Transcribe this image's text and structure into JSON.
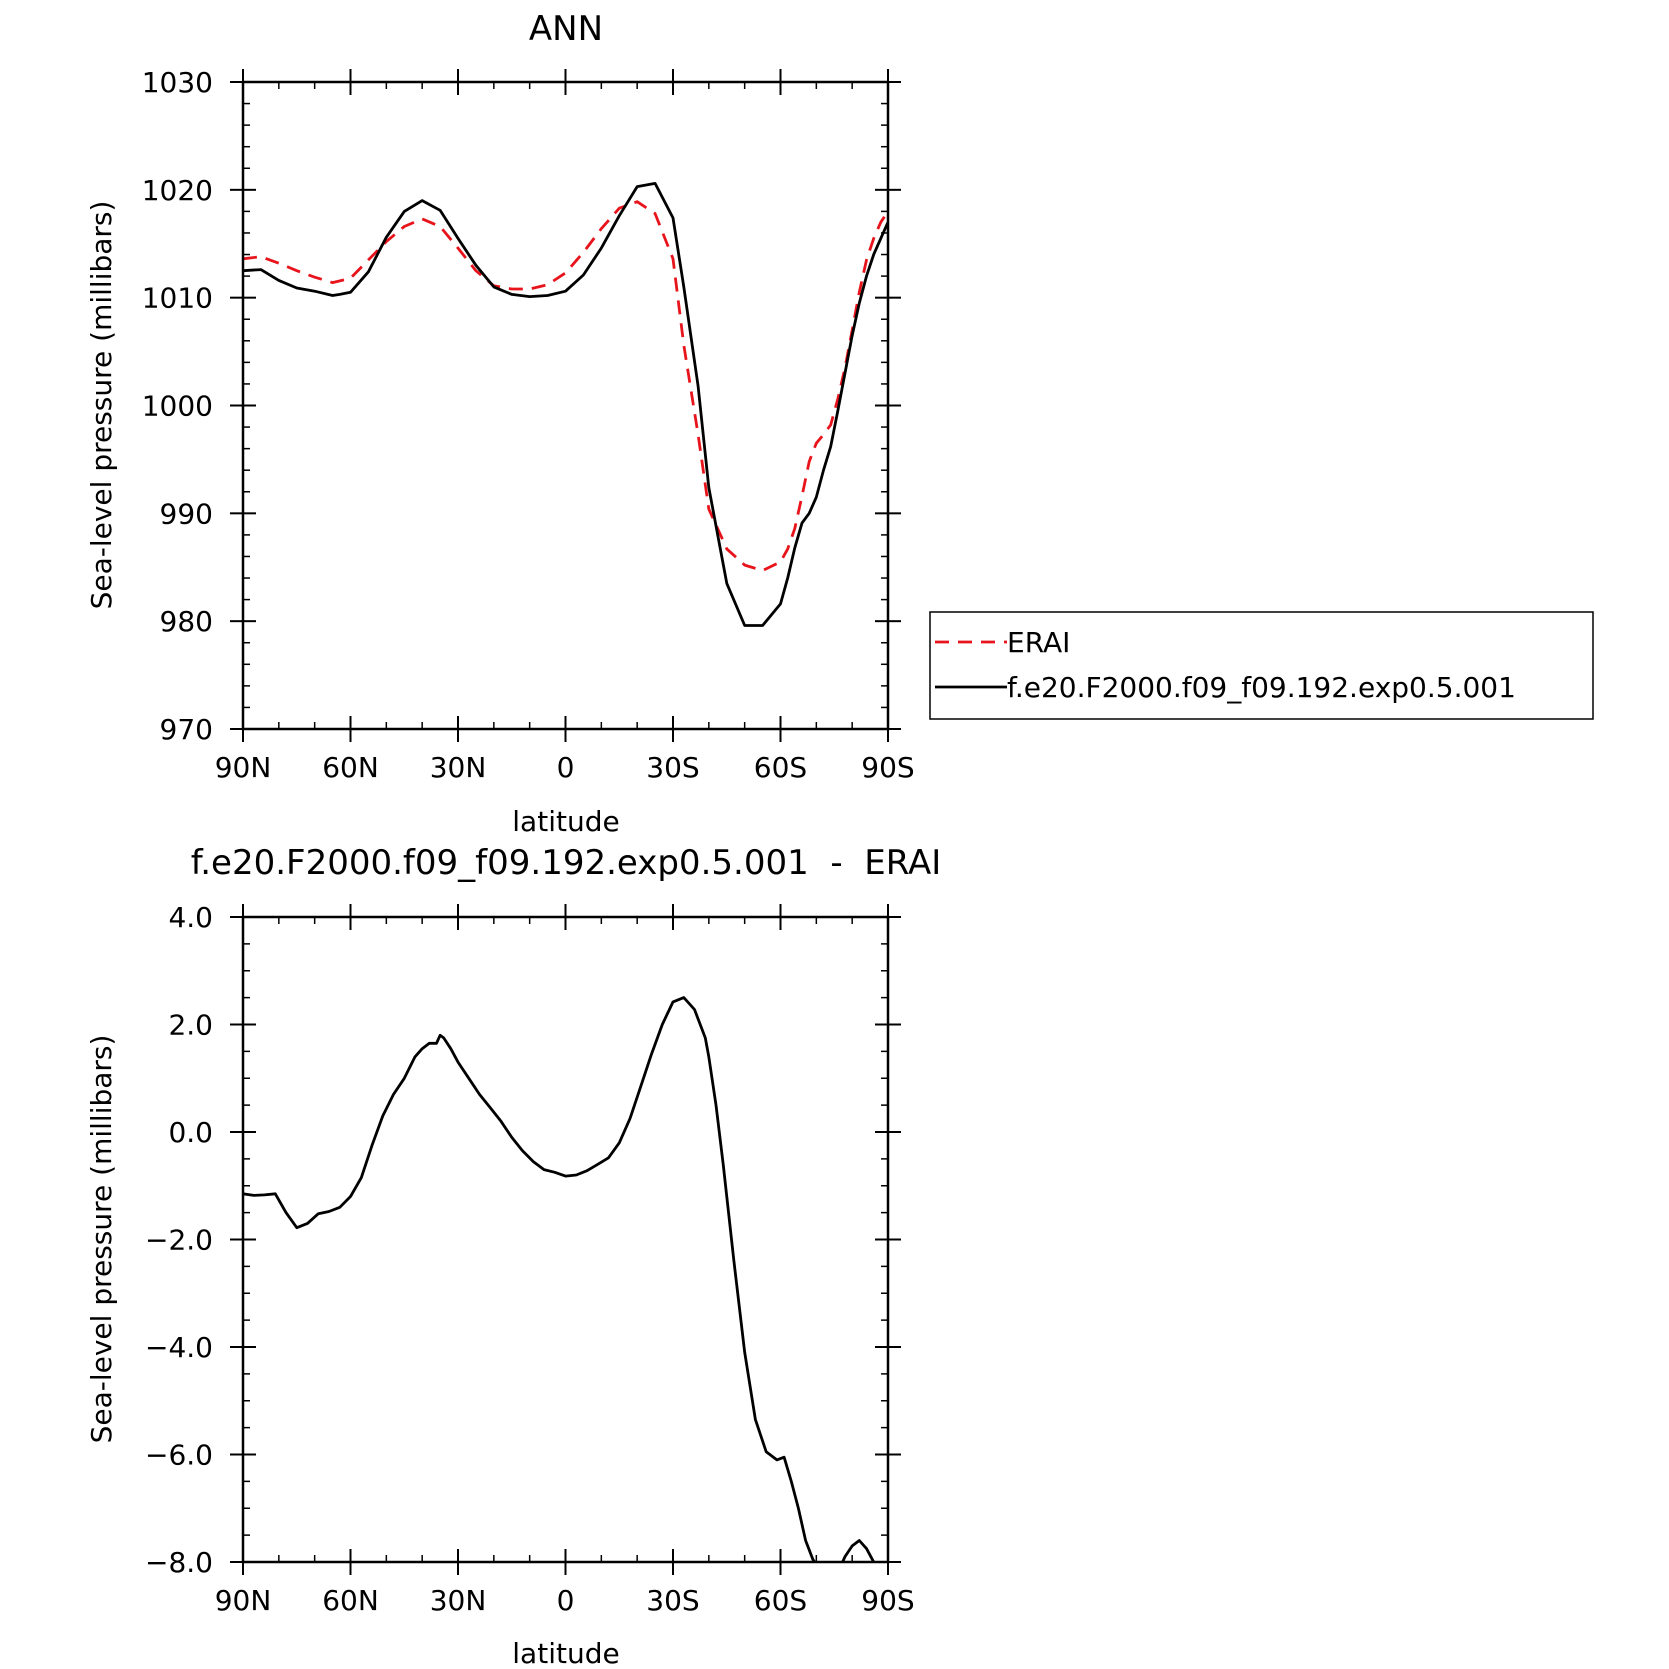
{
  "chart_data": [
    {
      "type": "line",
      "title": "ANN",
      "xlabel": "latitude",
      "ylabel": "Sea-level pressure (millibars)",
      "xlim": [
        -90,
        90
      ],
      "ylim": [
        970,
        1030
      ],
      "x_ticks": [
        -90,
        -60,
        -30,
        0,
        30,
        60,
        90
      ],
      "x_tick_labels": [
        "90N",
        "60N",
        "30N",
        "0",
        "30S",
        "60S",
        "90S"
      ],
      "y_ticks": [
        970,
        980,
        990,
        1000,
        1010,
        1020,
        1030
      ],
      "y_tick_labels": [
        "970",
        "980",
        "990",
        "1000",
        "1010",
        "1020",
        "1030"
      ],
      "legend_position": "right",
      "series": [
        {
          "name": "ERAI",
          "color": "#e8141c",
          "dash": "dashed",
          "x": [
            -90,
            -85,
            -80,
            -75,
            -70,
            -65,
            -60,
            -55,
            -50,
            -45,
            -40,
            -35,
            -30,
            -25,
            -20,
            -15,
            -10,
            -5,
            0,
            5,
            10,
            15,
            20,
            25,
            30,
            33,
            37,
            40,
            45,
            50,
            55,
            60,
            62,
            64,
            66,
            68,
            70,
            72,
            74,
            76,
            78,
            80,
            82,
            84,
            86,
            88,
            90
          ],
          "y": [
            1013.6,
            1013.8,
            1013.2,
            1012.5,
            1011.9,
            1011.4,
            1011.8,
            1013.5,
            1015.2,
            1016.6,
            1017.3,
            1016.6,
            1014.6,
            1012.5,
            1011.1,
            1010.8,
            1010.8,
            1011.2,
            1012.3,
            1014.2,
            1016.4,
            1018.3,
            1018.9,
            1017.8,
            1013.6,
            1005.6,
            997.3,
            990.4,
            986.7,
            985.2,
            984.7,
            985.5,
            986.7,
            988.6,
            991.6,
            994.8,
            996.5,
            997.3,
            998.2,
            1000.6,
            1003.5,
            1007.0,
            1010.5,
            1013.5,
            1015.5,
            1017.0,
            1018.0
          ]
        },
        {
          "name": "f.e20.F2000.f09_f09.192.exp0.5.001",
          "color": "#000000",
          "dash": "solid",
          "x": [
            -90,
            -85,
            -80,
            -75,
            -70,
            -65,
            -63,
            -60,
            -55,
            -50,
            -45,
            -40,
            -35,
            -30,
            -25,
            -20,
            -15,
            -10,
            -5,
            0,
            5,
            10,
            15,
            20,
            25,
            30,
            33,
            37,
            40,
            45,
            50,
            55,
            60,
            62,
            64,
            66,
            68,
            70,
            72,
            74,
            76,
            78,
            80,
            82,
            84,
            86,
            88,
            90
          ],
          "y": [
            1012.5,
            1012.6,
            1011.6,
            1010.9,
            1010.6,
            1010.2,
            1010.3,
            1010.5,
            1012.4,
            1015.6,
            1018.0,
            1019.0,
            1018.1,
            1015.5,
            1013.0,
            1011.0,
            1010.3,
            1010.1,
            1010.2,
            1010.6,
            1012.1,
            1014.6,
            1017.6,
            1020.3,
            1020.6,
            1017.4,
            1011.0,
            1001.8,
            992.4,
            983.5,
            979.6,
            979.6,
            981.6,
            984.0,
            986.8,
            989.1,
            990.0,
            991.5,
            994.0,
            996.2,
            999.5,
            1003.0,
            1006.5,
            1009.5,
            1012.0,
            1014.0,
            1015.5,
            1017.0
          ]
        }
      ]
    },
    {
      "type": "line",
      "title": "f.e20.F2000.f09_f09.192.exp0.5.001  -  ERAI",
      "xlabel": "latitude",
      "ylabel": "Sea-level pressure (millibars)",
      "xlim": [
        -90,
        90
      ],
      "ylim": [
        -8.0,
        4.0
      ],
      "x_ticks": [
        -90,
        -60,
        -30,
        0,
        30,
        60,
        90
      ],
      "x_tick_labels": [
        "90N",
        "60N",
        "30N",
        "0",
        "30S",
        "60S",
        "90S"
      ],
      "y_ticks": [
        -8.0,
        -6.0,
        -4.0,
        -2.0,
        0.0,
        2.0,
        4.0
      ],
      "y_tick_labels": [
        "-8.0",
        "-6.0",
        "-4.0",
        "-2.0",
        "0.0",
        "2.0",
        "4.0"
      ],
      "series": [
        {
          "color": "#000000",
          "dash": "solid",
          "x": [
            -90,
            -87,
            -84,
            -81,
            -78,
            -75,
            -72,
            -69,
            -66,
            -63,
            -60,
            -57,
            -54,
            -51,
            -48,
            -45,
            -42,
            -40,
            -38,
            -36,
            -35,
            -34,
            -32,
            -30,
            -27,
            -24,
            -21,
            -18,
            -15,
            -12,
            -9,
            -6,
            -3,
            0,
            3,
            6,
            9,
            12,
            15,
            18,
            21,
            24,
            27,
            30,
            33,
            36,
            39,
            40,
            42,
            44,
            47,
            50,
            53,
            56,
            59,
            61,
            63,
            65,
            67,
            69,
            71,
            73,
            76,
            78,
            80,
            82,
            84,
            86,
            88,
            90
          ],
          "y": [
            -1.15,
            -1.18,
            -1.17,
            -1.15,
            -1.5,
            -1.78,
            -1.7,
            -1.52,
            -1.48,
            -1.4,
            -1.2,
            -0.85,
            -0.25,
            0.3,
            0.7,
            1.0,
            1.4,
            1.55,
            1.65,
            1.65,
            1.8,
            1.75,
            1.55,
            1.3,
            1.0,
            0.7,
            0.45,
            0.2,
            -0.1,
            -0.35,
            -0.55,
            -0.7,
            -0.75,
            -0.82,
            -0.8,
            -0.72,
            -0.6,
            -0.48,
            -0.2,
            0.25,
            0.85,
            1.45,
            2.0,
            2.42,
            2.5,
            2.28,
            1.75,
            1.4,
            0.5,
            -0.6,
            -2.4,
            -4.1,
            -5.35,
            -5.95,
            -6.1,
            -6.05,
            -6.5,
            -7.0,
            -7.6,
            -7.95,
            -8.15,
            -8.3,
            -8.2,
            -7.9,
            -7.7,
            -7.6,
            -7.75,
            -8.0,
            -8.2,
            -8.3
          ]
        }
      ]
    }
  ],
  "legend": {
    "items": [
      {
        "label": "ERAI"
      },
      {
        "label": "f.e20.F2000.f09_f09.192.exp0.5.001"
      }
    ]
  }
}
